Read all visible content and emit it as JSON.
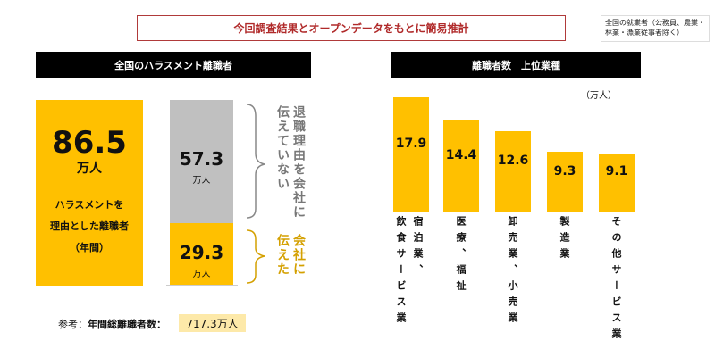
{
  "title": "今回調査結果とオープンデータをもとに簡易推計",
  "note": "全国の就業者（公務員、農業・林業・漁業従事者除く）",
  "left": {
    "header": "全国のハラスメント離職者",
    "total": {
      "value": "86.5",
      "unit": "万人",
      "desc": [
        "ハラスメントを",
        "理由とした離職者",
        "（年間）"
      ]
    },
    "not_told": {
      "value": "57.3",
      "unit": "万人",
      "label": "退職理由を会社に伝えていない"
    },
    "told": {
      "value": "29.3",
      "unit": "万人",
      "label": "会社に伝えた"
    },
    "reference": {
      "label": "参考：",
      "bold_label": "年間総離職者数：",
      "value": "717.3万人"
    }
  },
  "colors": {
    "yellow": "#FFC000",
    "grey": "#C0C0C0",
    "accent": "#B02A2A",
    "told_text": "#D4A000"
  },
  "chart_data": {
    "type": "bar",
    "title": "離職者数　上位業種",
    "unit_label": "（万人）",
    "categories": [
      [
        "宿泊業、",
        "飲食サービス業"
      ],
      [
        "医療、福祉"
      ],
      [
        "卸売業、小売業"
      ],
      [
        "製造業"
      ],
      [
        "その他サービス業"
      ]
    ],
    "values": [
      17.9,
      14.4,
      12.6,
      9.3,
      9.1
    ],
    "value_labels": [
      "17.9",
      "14.4",
      "12.6",
      "9.3",
      "9.1"
    ],
    "ylim": [
      0,
      17.9
    ]
  }
}
